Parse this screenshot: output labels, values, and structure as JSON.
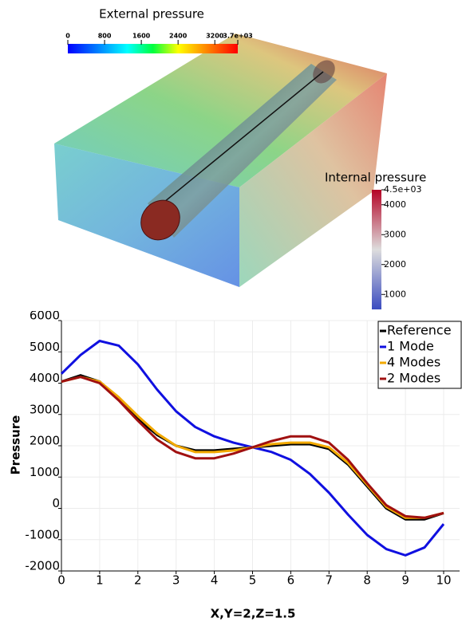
{
  "render": {
    "external_colorbar": {
      "title": "External pressure",
      "range": [
        0,
        3700
      ],
      "ticks": [
        0,
        800,
        1600,
        2400,
        3200,
        {
          "value": 3700,
          "label": "3.7e+03"
        }
      ]
    },
    "internal_colorbar": {
      "title": "Internal pressure",
      "range": [
        500,
        4500
      ],
      "ticks": [
        {
          "value": 4500,
          "label": "4.5e+03"
        },
        4000,
        3000,
        2000,
        1000
      ]
    }
  },
  "chart_data": {
    "type": "line",
    "xlabel": "X,Y=2,Z=1.5",
    "ylabel": "Pressure",
    "x": [
      0,
      0.5,
      1,
      1.5,
      2,
      2.5,
      3,
      3.5,
      4,
      4.5,
      5,
      5.5,
      6,
      6.5,
      7,
      7.5,
      8,
      8.5,
      9,
      9.5,
      10
    ],
    "series": [
      {
        "name": "Reference",
        "color": "#000000",
        "values": [
          4050,
          4250,
          4050,
          3500,
          2850,
          2350,
          2000,
          1850,
          1850,
          1900,
          1950,
          2000,
          2050,
          2050,
          1900,
          1400,
          700,
          0,
          -350,
          -350,
          -150
        ]
      },
      {
        "name": "1 Mode",
        "color": "#1010e0",
        "values": [
          4300,
          4900,
          5350,
          5200,
          4600,
          3800,
          3100,
          2600,
          2300,
          2100,
          1950,
          1800,
          1550,
          1100,
          500,
          -200,
          -850,
          -1300,
          -1500,
          -1250,
          -500
        ]
      },
      {
        "name": "4 Modes",
        "color": "#f2a900",
        "values": [
          4050,
          4200,
          4050,
          3550,
          2950,
          2400,
          2000,
          1800,
          1800,
          1850,
          1950,
          2050,
          2100,
          2100,
          1950,
          1450,
          750,
          50,
          -300,
          -300,
          -150
        ]
      },
      {
        "name": "2 Modes",
        "color": "#a01010",
        "values": [
          4050,
          4200,
          4000,
          3450,
          2800,
          2200,
          1800,
          1600,
          1600,
          1750,
          1950,
          2150,
          2300,
          2300,
          2100,
          1550,
          800,
          100,
          -250,
          -300,
          -150
        ]
      }
    ],
    "xlim": [
      0,
      10
    ],
    "xticks": [
      0,
      1,
      2,
      3,
      4,
      5,
      6,
      7,
      8,
      9,
      10
    ],
    "ylim": [
      -2000,
      6000
    ],
    "yticks": [
      -2000,
      -1000,
      0,
      1000,
      2000,
      3000,
      4000,
      5000,
      6000
    ],
    "grid": true,
    "legend": "upper right"
  }
}
